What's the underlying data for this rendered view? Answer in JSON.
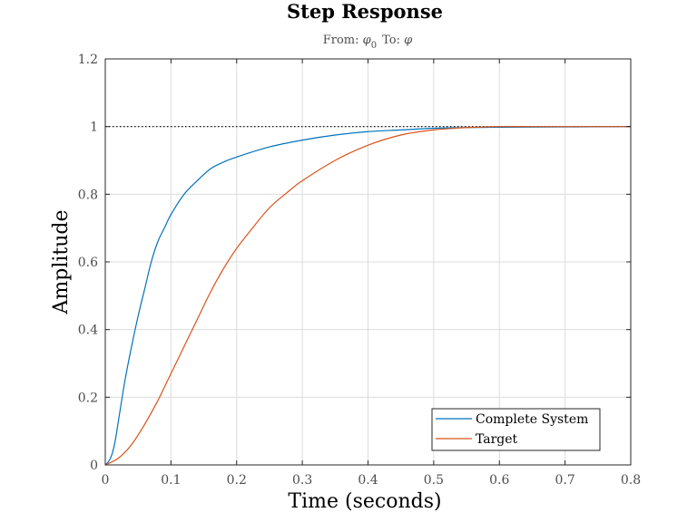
{
  "chart_data": {
    "type": "line",
    "title": "Step Response",
    "subtitle": {
      "from_label": "From: ",
      "from_symbol": "φ",
      "from_subscript": "0",
      "to_label": "To: ",
      "to_symbol": "φ"
    },
    "xlabel": "Time (seconds)",
    "ylabel": "Amplitude",
    "xlim": [
      0,
      0.8
    ],
    "ylim": [
      0,
      1.2
    ],
    "xticks": [
      "0",
      "0.1",
      "0.2",
      "0.3",
      "0.4",
      "0.5",
      "0.6",
      "0.7",
      "0.8"
    ],
    "yticks": [
      "0",
      "0.2",
      "0.4",
      "0.6",
      "0.8",
      "1",
      "1.2"
    ],
    "xtick_values": [
      0,
      0.1,
      0.2,
      0.3,
      0.4,
      0.5,
      0.6,
      0.7,
      0.8
    ],
    "ytick_values": [
      0,
      0.2,
      0.4,
      0.6,
      0.8,
      1.0,
      1.2
    ],
    "grid": true,
    "reference_line": {
      "y": 1.0,
      "style": "dotted",
      "color": "#000000"
    },
    "legend": {
      "position": "bottom-right",
      "entries": [
        "Complete System",
        "Target"
      ]
    },
    "series": [
      {
        "name": "Complete System",
        "color": "#0072bd",
        "x": [
          0,
          0.005,
          0.01,
          0.015,
          0.02,
          0.03,
          0.04,
          0.05,
          0.06,
          0.07,
          0.08,
          0.09,
          0.1,
          0.12,
          0.14,
          0.16,
          0.18,
          0.2,
          0.25,
          0.3,
          0.35,
          0.4,
          0.45,
          0.5,
          0.55,
          0.6,
          0.7,
          0.8
        ],
        "y": [
          0,
          0.01,
          0.03,
          0.07,
          0.13,
          0.25,
          0.35,
          0.44,
          0.52,
          0.6,
          0.66,
          0.7,
          0.74,
          0.8,
          0.84,
          0.875,
          0.895,
          0.91,
          0.94,
          0.96,
          0.975,
          0.985,
          0.99,
          0.995,
          0.997,
          0.998,
          0.999,
          1.0
        ]
      },
      {
        "name": "Target",
        "color": "#d95319",
        "x": [
          0,
          0.02,
          0.04,
          0.06,
          0.08,
          0.1,
          0.12,
          0.14,
          0.16,
          0.18,
          0.2,
          0.22,
          0.25,
          0.28,
          0.3,
          0.35,
          0.4,
          0.45,
          0.5,
          0.55,
          0.6,
          0.65,
          0.7,
          0.8
        ],
        "y": [
          0,
          0.02,
          0.06,
          0.12,
          0.19,
          0.27,
          0.35,
          0.43,
          0.51,
          0.58,
          0.64,
          0.69,
          0.76,
          0.81,
          0.84,
          0.9,
          0.945,
          0.975,
          0.99,
          0.997,
          1.0,
          1.0,
          1.0,
          1.0
        ]
      }
    ]
  }
}
